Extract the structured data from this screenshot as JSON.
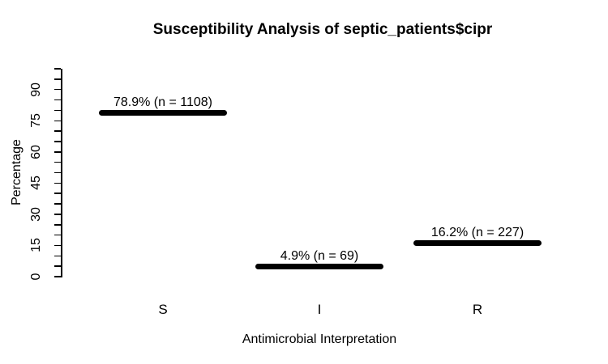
{
  "figure": {
    "background": "#ffffff",
    "foreground": "#000000"
  },
  "chart_data": {
    "type": "bar",
    "style": "horizontal-segment-bars",
    "title": "Susceptibility Analysis of septic_patients$cipr",
    "xlabel": "Antimicrobial Interpretation",
    "ylabel": "Percentage",
    "categories": [
      "S",
      "I",
      "R"
    ],
    "values": [
      78.9,
      4.9,
      16.2
    ],
    "counts": [
      1108,
      69,
      227
    ],
    "bar_labels": [
      "78.9% (n = 1108)",
      "4.9% (n = 69)",
      "16.2% (n = 227)"
    ],
    "ylim": [
      0,
      100
    ],
    "ytick_label_values": [
      0,
      15,
      30,
      45,
      60,
      75,
      90
    ],
    "ytick_minor_step": 5,
    "grid": false,
    "legend": null,
    "bar_color": "#000000"
  }
}
